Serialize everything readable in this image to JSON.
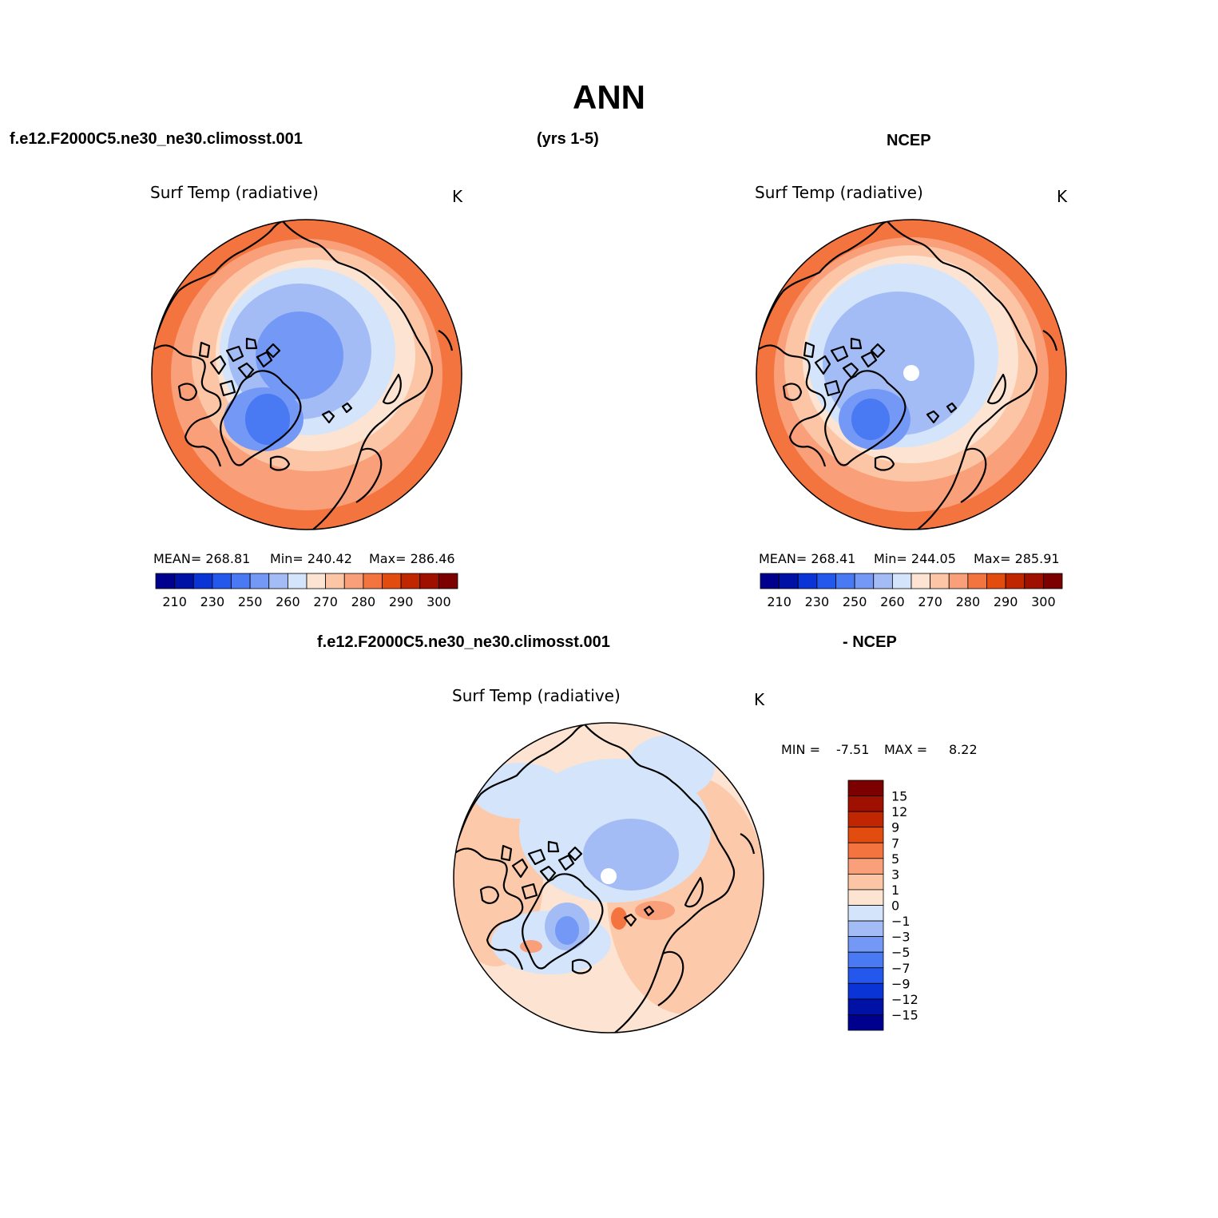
{
  "main_title": "ANN",
  "header": {
    "case_name": "f.e12.F2000C5.ne30_ne30.climosst.001",
    "years": "(yrs 1-5)",
    "obs_name": "NCEP"
  },
  "diff_header": {
    "case_name": "f.e12.F2000C5.ne30_ne30.climosst.001",
    "obs_name": "- NCEP"
  },
  "colors": {
    "blue_scale": [
      "#00008f",
      "#0012a6",
      "#0a34d6",
      "#2457ec",
      "#4979f3",
      "#7498f5",
      "#a3bcf5",
      "#d4e5fb"
    ],
    "red_scale": [
      "#fde4d2",
      "#fcc6a6",
      "#f9a07a",
      "#f4743f",
      "#e34c0f",
      "#c02600",
      "#a01000",
      "#7d0000"
    ],
    "coast": "#000000",
    "pole_hole": "#ffffff"
  },
  "chart_data": [
    {
      "type": "heatmap",
      "projection": "north-polar-stereographic",
      "title": "Surf Temp (radiative)",
      "units": "K",
      "stats": {
        "mean": "MEAN= 268.81",
        "min": "Min= 240.42",
        "max": "Max= 286.46"
      },
      "colorbar": {
        "orientation": "horizontal",
        "levels": [
          205,
          210,
          215,
          220,
          225,
          230,
          235,
          240,
          245,
          250,
          255,
          260,
          265,
          270,
          275,
          280,
          285,
          290,
          295,
          300,
          305
        ],
        "tick_labels": [
          "210",
          "230",
          "250",
          "260",
          "270",
          "280",
          "290",
          "300"
        ]
      }
    },
    {
      "type": "heatmap",
      "projection": "north-polar-stereographic",
      "title": "Surf Temp (radiative)",
      "units": "K",
      "stats": {
        "mean": "MEAN= 268.41",
        "min": "Min= 244.05",
        "max": "Max= 285.91"
      },
      "colorbar": {
        "orientation": "horizontal",
        "levels": [
          205,
          210,
          215,
          220,
          225,
          230,
          235,
          240,
          245,
          250,
          255,
          260,
          265,
          270,
          275,
          280,
          285,
          290,
          295,
          300,
          305
        ],
        "tick_labels": [
          "210",
          "230",
          "250",
          "260",
          "270",
          "280",
          "290",
          "300"
        ]
      }
    },
    {
      "type": "heatmap",
      "projection": "north-polar-stereographic",
      "title": "Surf Temp (radiative)",
      "units": "K",
      "stats": {
        "min_label": "MIN =",
        "min": "-7.51",
        "max_label": "MAX =",
        "max": "8.22"
      },
      "colorbar": {
        "orientation": "vertical",
        "levels": [
          -15,
          -12,
          -9,
          -7,
          -5,
          -3,
          -1,
          0,
          1,
          3,
          5,
          7,
          9,
          12,
          15
        ],
        "tick_labels": [
          "15",
          "12",
          "9",
          "7",
          "5",
          "3",
          "1",
          "0",
          "−1",
          "−3",
          "−5",
          "−7",
          "−9",
          "−12",
          "−15"
        ]
      }
    }
  ]
}
